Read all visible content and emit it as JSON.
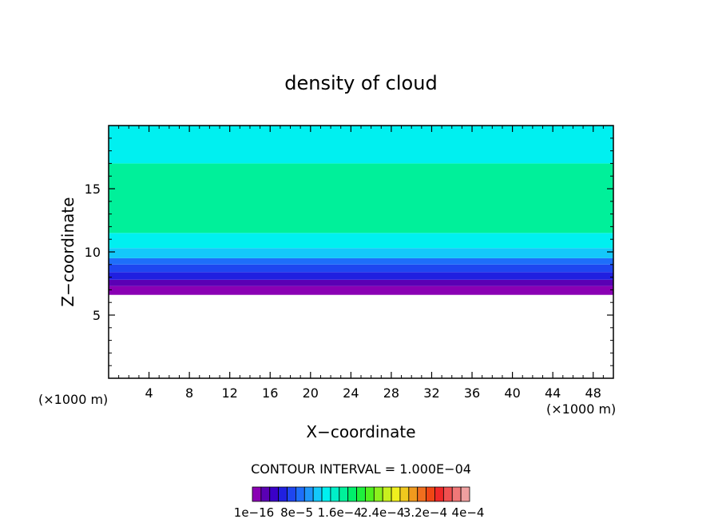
{
  "chart_data": {
    "type": "heatmap",
    "title": "density of cloud",
    "xlabel": "X−coordinate",
    "ylabel": "Z−coordinate",
    "xlim": [
      0,
      50
    ],
    "ylim": [
      0,
      20
    ],
    "x_ticks": [
      "4",
      "8",
      "12",
      "16",
      "20",
      "24",
      "28",
      "32",
      "36",
      "40",
      "44",
      "48"
    ],
    "y_ticks": [
      "5",
      "10",
      "15"
    ],
    "x_unit_label": "(×1000 m)",
    "y_unit_label": "(×1000 m)",
    "contour_interval_label": "CONTOUR INTERVAL = 1.000E−04",
    "colorbar_labels": [
      "1e−16",
      "8e−5",
      "1.6e−4",
      "2.4e−4",
      "3.2e−4",
      "4e−4"
    ],
    "colorbar_colors": [
      "#8a00b4",
      "#5a00b4",
      "#3a00c8",
      "#2020e0",
      "#1e46f0",
      "#1e6efa",
      "#1e96fa",
      "#14c8fa",
      "#00f0f0",
      "#00f0c8",
      "#00f09a",
      "#00f06a",
      "#1ef03c",
      "#50f01e",
      "#8cf01e",
      "#c8f01e",
      "#f0f01e",
      "#f0c81e",
      "#f09a1e",
      "#f06e1e",
      "#f04614",
      "#f02828",
      "#f05050",
      "#f07878",
      "#f0a0a0"
    ],
    "bands": [
      {
        "z_bottom": 6.6,
        "z_top": 7.3,
        "level": 2e-05,
        "color": "#8a00b4"
      },
      {
        "z_bottom": 7.3,
        "z_top": 7.8,
        "level": 3.5e-05,
        "color": "#5a00b4"
      },
      {
        "z_bottom": 7.8,
        "z_top": 8.4,
        "level": 5e-05,
        "color": "#2020e0"
      },
      {
        "z_bottom": 8.4,
        "z_top": 9.0,
        "level": 6.5e-05,
        "color": "#1e46f0"
      },
      {
        "z_bottom": 9.0,
        "z_top": 9.5,
        "level": 7.5e-05,
        "color": "#1e6efa"
      },
      {
        "z_bottom": 9.5,
        "z_top": 10.3,
        "level": 8.5e-05,
        "color": "#14c8fa"
      },
      {
        "z_bottom": 10.3,
        "z_top": 11.5,
        "level": 9.5e-05,
        "color": "#00f0f0"
      },
      {
        "z_bottom": 11.5,
        "z_top": 17.0,
        "level": 0.00011,
        "color": "#00f09a"
      },
      {
        "z_bottom": 17.0,
        "z_top": 20.0,
        "level": 9.5e-05,
        "color": "#00f0f0"
      }
    ]
  }
}
